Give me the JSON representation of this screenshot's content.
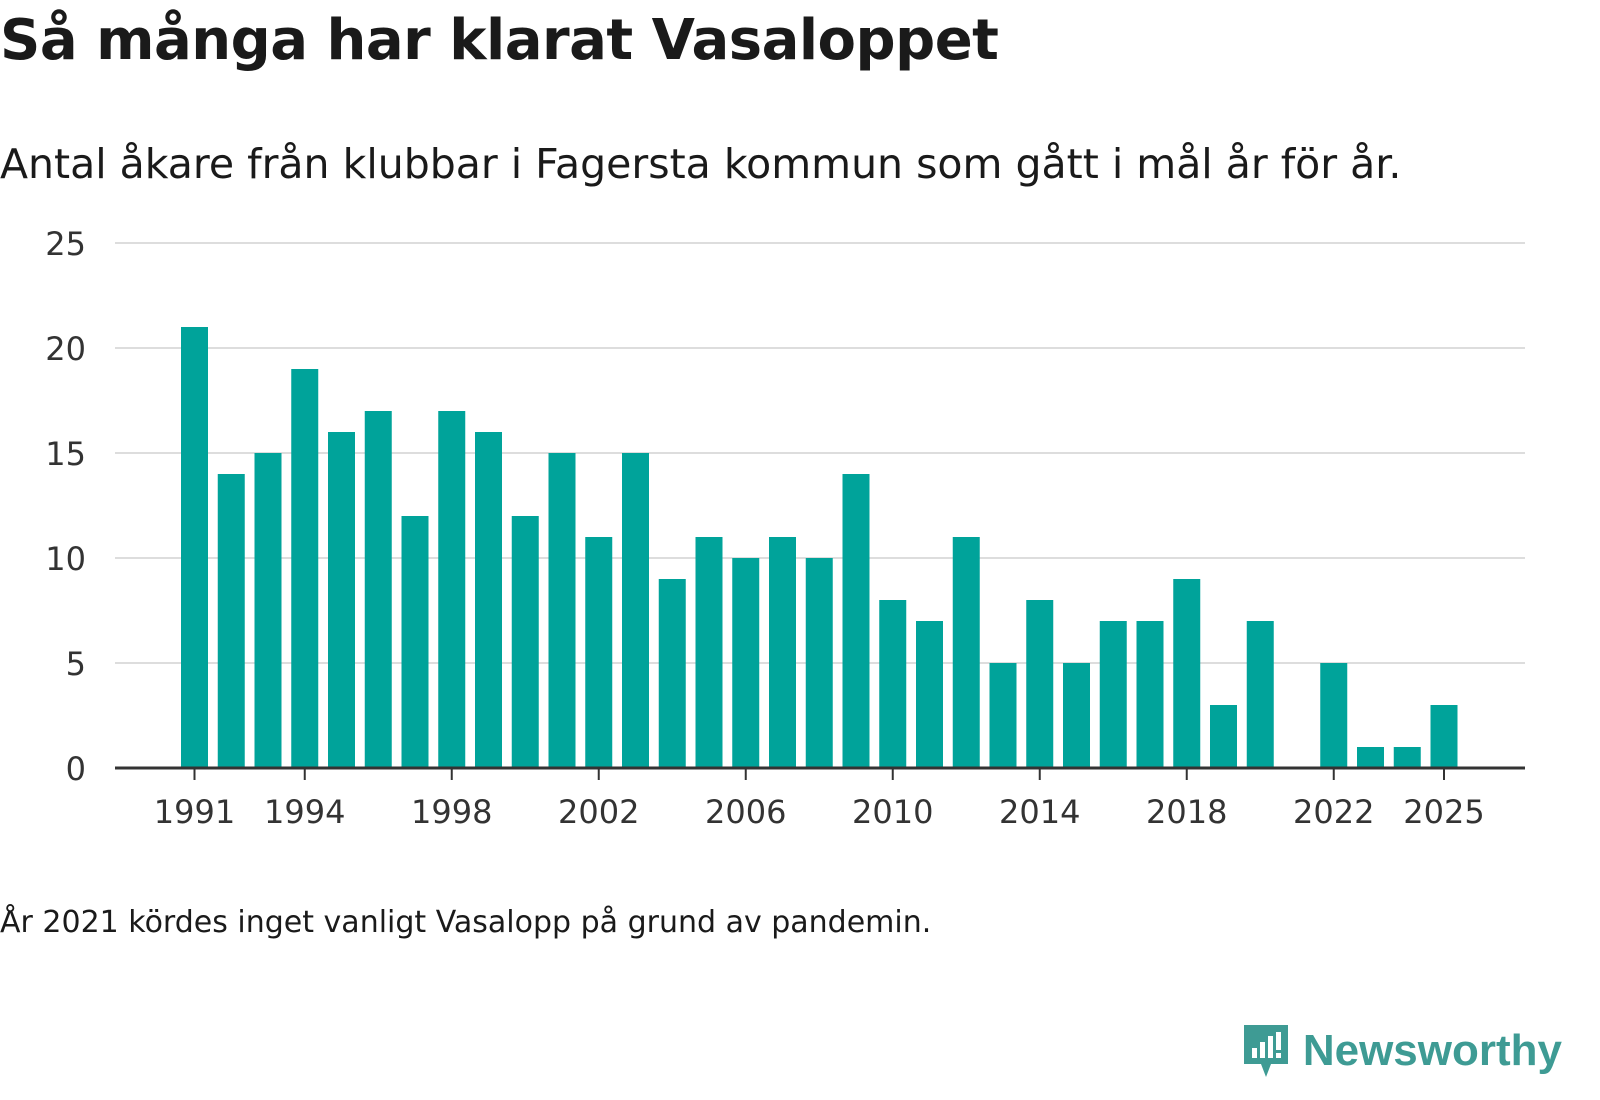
{
  "title": "Så många har klarat Vasaloppet",
  "subtitle": "Antal åkare från klubbar i Fagersta kommun som gått i mål år för år.",
  "note": "År 2021 kördes inget vanligt Vasalopp på grund av pandemin.",
  "brand": {
    "name": "Newsworthy",
    "icon": "newsworthy-logo-icon",
    "color": "#3e9b94"
  },
  "colors": {
    "bar": "#00a39a",
    "grid": "#dddddd",
    "axis": "#333333"
  },
  "chart_data": {
    "type": "bar",
    "title": "Så många har klarat Vasaloppet",
    "xlabel": "",
    "ylabel": "",
    "ylim": [
      0,
      25
    ],
    "yticks": [
      0,
      5,
      10,
      15,
      20,
      25
    ],
    "xtick_labels": [
      "1991",
      "1994",
      "1998",
      "2002",
      "2006",
      "2010",
      "2014",
      "2018",
      "2022",
      "2025"
    ],
    "categories": [
      1991,
      1992,
      1993,
      1994,
      1995,
      1996,
      1997,
      1998,
      1999,
      2000,
      2001,
      2002,
      2003,
      2004,
      2005,
      2006,
      2007,
      2008,
      2009,
      2010,
      2011,
      2012,
      2013,
      2014,
      2015,
      2016,
      2017,
      2018,
      2019,
      2020,
      2021,
      2022,
      2023,
      2024,
      2025
    ],
    "values": [
      21,
      14,
      15,
      19,
      16,
      17,
      12,
      17,
      16,
      12,
      15,
      11,
      15,
      9,
      11,
      10,
      11,
      10,
      14,
      8,
      7,
      11,
      5,
      8,
      5,
      7,
      7,
      9,
      3,
      7,
      0,
      5,
      1,
      1,
      3
    ],
    "grid": true
  }
}
